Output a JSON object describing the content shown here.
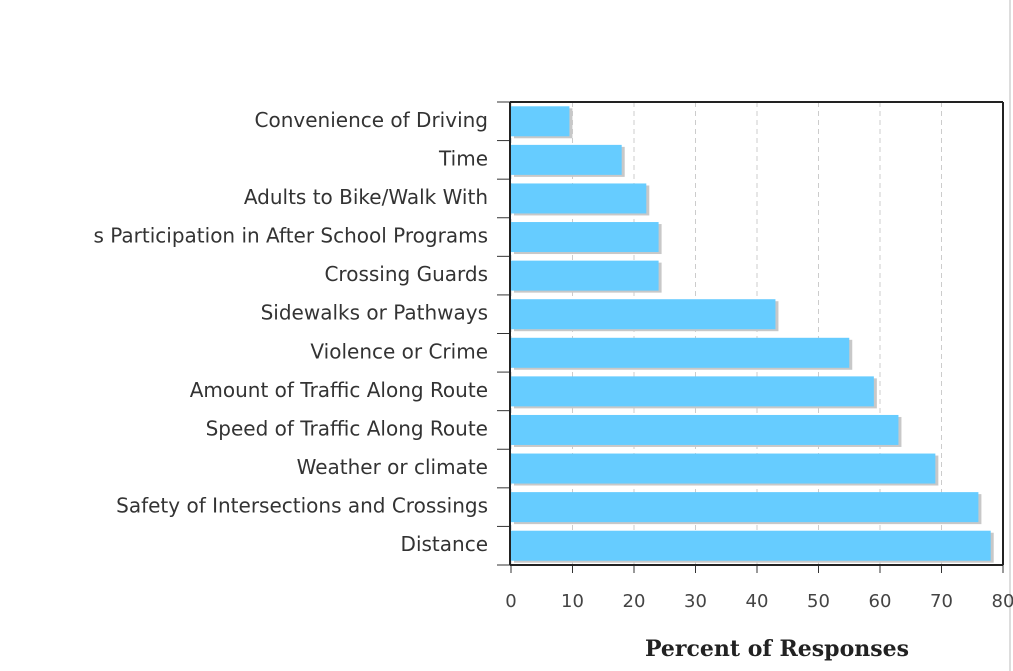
{
  "chart_data": {
    "type": "hbar",
    "categories": [
      "Convenience of Driving",
      "Time",
      "Adults to Bike/Walk With",
      "s Participation in After School Programs",
      "Crossing Guards",
      "Sidewalks or Pathways",
      "Violence or Crime",
      "Amount of Traffic Along Route",
      "Speed of Traffic Along Route",
      "Weather or climate",
      "Safety of Intersections and Crossings",
      "Distance"
    ],
    "values": [
      9.5,
      18,
      22,
      24,
      24,
      43,
      55,
      59,
      63,
      69,
      76,
      78
    ],
    "color": "#66ccff",
    "x_label": "Percent of Responses",
    "xlim": [
      0,
      80
    ],
    "xticks": [
      0,
      10,
      20,
      30,
      40,
      50,
      60,
      70,
      80
    ],
    "grid": true
  }
}
